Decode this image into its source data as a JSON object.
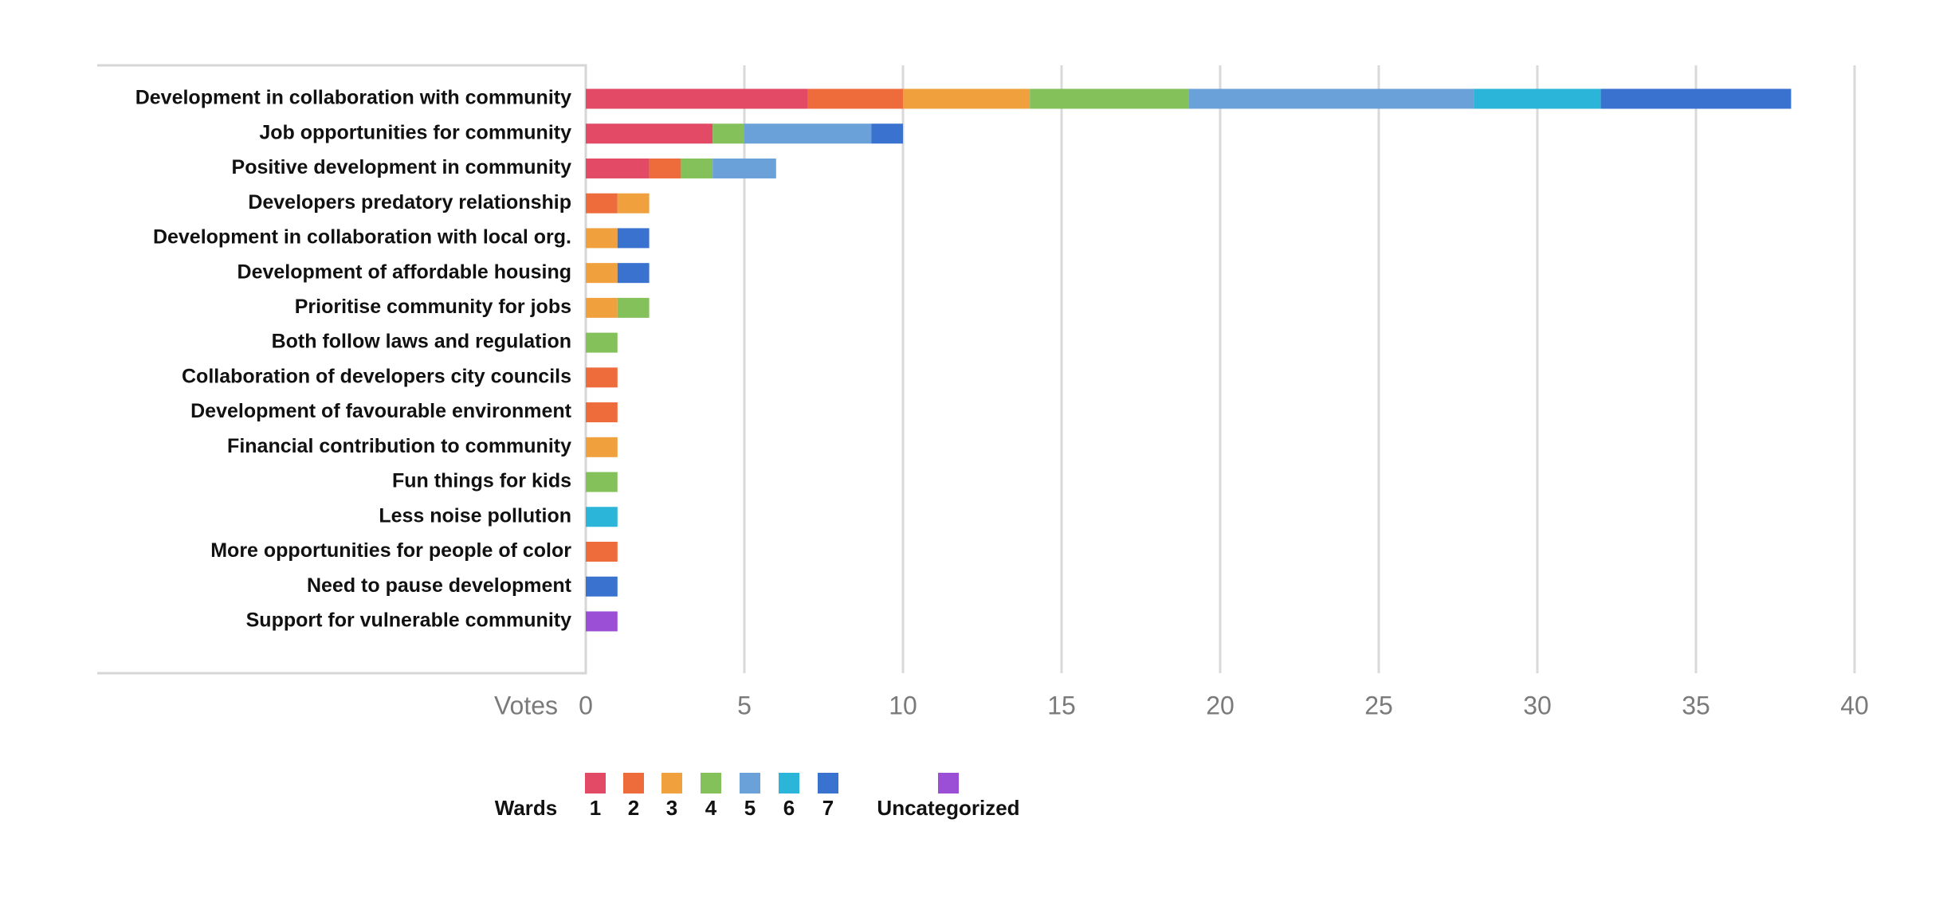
{
  "chart_data": {
    "type": "bar",
    "orientation": "horizontal",
    "stacked": true,
    "title": "",
    "xlabel": "Votes",
    "ylabel": "",
    "xlim": [
      0,
      40
    ],
    "xticks": [
      "0",
      "5",
      "10",
      "15",
      "20",
      "25",
      "30",
      "35",
      "40"
    ],
    "grid": true,
    "legend_title": "Wards",
    "legend_position": "bottom",
    "categories": [
      "Development in collaboration with community",
      "Job opportunities for community",
      "Positive development in community",
      "Developers predatory relationship",
      "Development in collaboration with local org.",
      "Development of affordable housing",
      "Prioritise community for jobs",
      "Both follow laws and regulation",
      "Collaboration of developers city councils",
      "Development of favourable environment",
      "Financial contribution to community",
      "Fun things for kids",
      "Less noise pollution",
      "More opportunities for people of color",
      "Need to pause development",
      "Support for vulnerable community"
    ],
    "series": [
      {
        "name": "1",
        "color": "#e24a65",
        "values": [
          7,
          4,
          2,
          0,
          0,
          0,
          0,
          0,
          0,
          0,
          0,
          0,
          0,
          0,
          0,
          0
        ]
      },
      {
        "name": "2",
        "color": "#ee6b3b",
        "values": [
          3,
          0,
          1,
          1,
          0,
          0,
          0,
          0,
          1,
          1,
          0,
          0,
          0,
          1,
          0,
          0
        ]
      },
      {
        "name": "3",
        "color": "#f0a03c",
        "values": [
          4,
          0,
          0,
          1,
          1,
          1,
          1,
          0,
          0,
          0,
          1,
          0,
          0,
          0,
          0,
          0
        ]
      },
      {
        "name": "4",
        "color": "#84c15a",
        "values": [
          5,
          1,
          1,
          0,
          0,
          0,
          1,
          1,
          0,
          0,
          0,
          1,
          0,
          0,
          0,
          0
        ]
      },
      {
        "name": "5",
        "color": "#6aa1d9",
        "values": [
          9,
          4,
          2,
          0,
          0,
          0,
          0,
          0,
          0,
          0,
          0,
          0,
          0,
          0,
          0,
          0
        ]
      },
      {
        "name": "6",
        "color": "#2bb5d8",
        "values": [
          4,
          0,
          0,
          0,
          0,
          0,
          0,
          0,
          0,
          0,
          0,
          0,
          1,
          0,
          0,
          0
        ]
      },
      {
        "name": "7",
        "color": "#3a72d0",
        "values": [
          6,
          1,
          0,
          0,
          1,
          1,
          0,
          0,
          0,
          0,
          0,
          0,
          0,
          0,
          1,
          0
        ]
      },
      {
        "name": "Uncategorized",
        "color": "#9b4fd6",
        "values": [
          0,
          0,
          0,
          0,
          0,
          0,
          0,
          0,
          0,
          0,
          0,
          0,
          0,
          0,
          0,
          1
        ]
      }
    ]
  }
}
